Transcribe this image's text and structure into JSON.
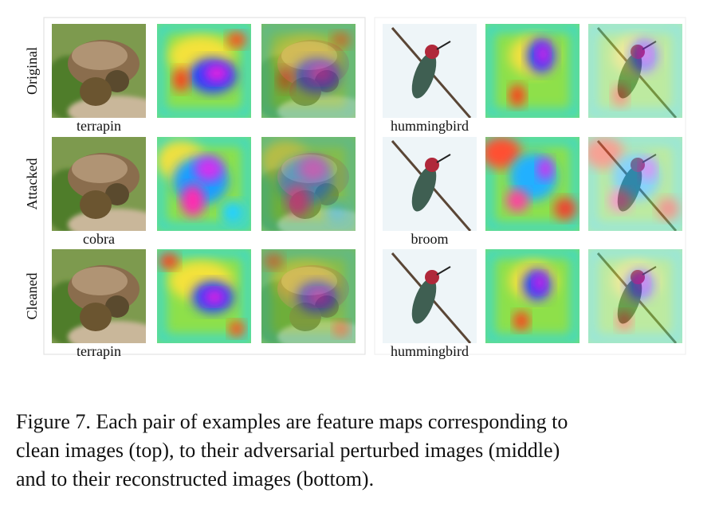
{
  "row_labels": [
    "Original",
    "Attacked",
    "Cleaned"
  ],
  "panels": [
    {
      "labels": [
        "terrapin",
        "cobra",
        "terrapin"
      ]
    },
    {
      "labels": [
        "hummingbird",
        "broom",
        "hummingbird"
      ]
    }
  ],
  "caption": {
    "lines": [
      "Figure 7. Each pair of examples are feature maps corresponding to",
      "clean images (top), to their adversarial perturbed images (middle)",
      "and to their reconstructed images (bottom)."
    ]
  }
}
